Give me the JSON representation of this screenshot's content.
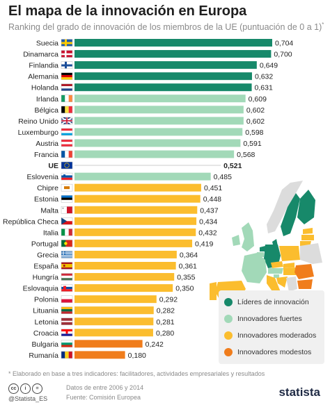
{
  "header": {
    "title": "El mapa de la innovación en Europa",
    "subtitle": "Ranking del grado de innovación de los miembros de la UE (puntuación de 0 a 1)",
    "subtitle_mark": "*"
  },
  "colors": {
    "leaders": "#17896a",
    "strong": "#a2d9b8",
    "moderate": "#fbbd2e",
    "modest": "#f07d1c"
  },
  "chart_data": {
    "type": "bar",
    "orientation": "horizontal",
    "categories": [
      "Suecia",
      "Dinamarca",
      "Finlandia",
      "Alemania",
      "Holanda",
      "Irlanda",
      "Bélgica",
      "Reino Unido",
      "Luxemburgo",
      "Austria",
      "Francia",
      "UE",
      "Eslovenia",
      "Chipre",
      "Estonia",
      "Malta",
      "República Checa",
      "Italia",
      "Portugal",
      "Grecia",
      "España",
      "Hungría",
      "Eslovaquia",
      "Polonia",
      "Lituania",
      "Letonia",
      "Croacia",
      "Bulgaria",
      "Rumanía"
    ],
    "values": [
      0.704,
      0.7,
      0.649,
      0.632,
      0.631,
      0.609,
      0.602,
      0.602,
      0.598,
      0.591,
      0.568,
      0.521,
      0.485,
      0.451,
      0.448,
      0.437,
      0.434,
      0.432,
      0.419,
      0.364,
      0.361,
      0.355,
      0.35,
      0.292,
      0.282,
      0.281,
      0.28,
      0.242,
      0.18
    ],
    "value_labels": [
      "0,704",
      "0,700",
      "0,649",
      "0,632",
      "0,631",
      "0,609",
      "0,602",
      "0,602",
      "0,598",
      "0,591",
      "0,568",
      "0,521",
      "0,485",
      "0,451",
      "0,448",
      "0,437",
      "0,434",
      "0,432",
      "0,419",
      "0,364",
      "0,361",
      "0,355",
      "0,350",
      "0,292",
      "0,282",
      "0,281",
      "0,280",
      "0,242",
      "0,180"
    ],
    "groups": [
      "leaders",
      "leaders",
      "leaders",
      "leaders",
      "leaders",
      "strong",
      "strong",
      "strong",
      "strong",
      "strong",
      "strong",
      "eu",
      "strong",
      "moderate",
      "moderate",
      "moderate",
      "moderate",
      "moderate",
      "moderate",
      "moderate",
      "moderate",
      "moderate",
      "moderate",
      "moderate",
      "moderate",
      "moderate",
      "moderate",
      "modest",
      "modest"
    ],
    "flags": [
      "SE",
      "DK",
      "FI",
      "DE",
      "NL",
      "IE",
      "BE",
      "GB",
      "LU",
      "AT",
      "FR",
      "EU",
      "SI",
      "CY",
      "EE",
      "MT",
      "CZ",
      "IT",
      "PT",
      "GR",
      "ES",
      "HU",
      "SK",
      "PL",
      "LT",
      "LV",
      "HR",
      "BG",
      "RO"
    ],
    "highlight": "UE",
    "xlim": [
      0,
      0.72
    ],
    "grid": false
  },
  "legend": {
    "items": [
      {
        "label": "Líderes de innovación",
        "color": "#17896a"
      },
      {
        "label": "Innovadores fuertes",
        "color": "#a2d9b8"
      },
      {
        "label": "Innovadores moderados",
        "color": "#fbbd2e"
      },
      {
        "label": "Innovadores modestos",
        "color": "#f07d1c"
      }
    ]
  },
  "footer": {
    "footnote": "* Elaborado en base a tres indicadores: facilitadores, actividades empresariales y resultados",
    "license_icons": [
      "cc",
      "i",
      "="
    ],
    "handle": "@Statista_ES",
    "dates": "Datos de entre 2006 y 2014",
    "source": "Fuente: Comisión Europea",
    "logo": "statista"
  }
}
